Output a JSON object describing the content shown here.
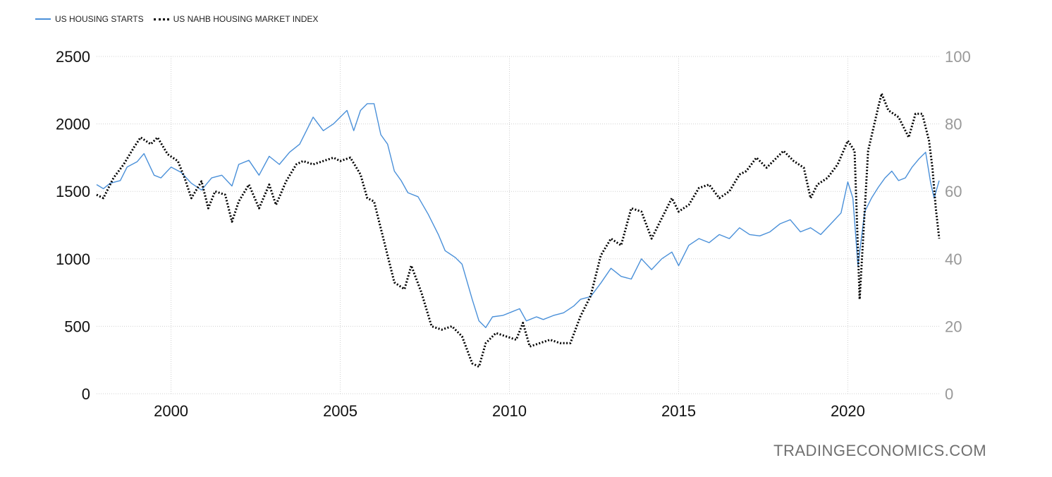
{
  "legend": {
    "series1": "US HOUSING STARTS",
    "series2": "US NAHB HOUSING MARKET INDEX"
  },
  "watermark": "TRADINGECONOMICS.COM",
  "colors": {
    "series1": "#4a90d9",
    "series2": "#000000",
    "grid": "#d0d0d0",
    "right_axis": "#999999"
  },
  "chart_data": {
    "type": "line",
    "x_ticks": [
      "2000",
      "2005",
      "2010",
      "2015",
      "2020"
    ],
    "y_left": {
      "ticks": [
        "0",
        "500",
        "1000",
        "1500",
        "2000",
        "2500"
      ],
      "range": [
        0,
        2500
      ]
    },
    "y_right": {
      "ticks": [
        "0",
        "20",
        "40",
        "60",
        "80",
        "100"
      ],
      "range": [
        0,
        100
      ]
    },
    "x_range": [
      1997.8,
      2022.7
    ],
    "grid": true,
    "legend_position": "top-left",
    "series": [
      {
        "name": "US HOUSING STARTS",
        "axis": "left",
        "style": "solid",
        "points": [
          [
            1997.8,
            1550
          ],
          [
            1998.0,
            1520
          ],
          [
            1998.2,
            1560
          ],
          [
            1998.5,
            1580
          ],
          [
            1998.7,
            1680
          ],
          [
            1999.0,
            1720
          ],
          [
            1999.2,
            1780
          ],
          [
            1999.5,
            1620
          ],
          [
            1999.7,
            1600
          ],
          [
            2000.0,
            1680
          ],
          [
            2000.3,
            1640
          ],
          [
            2000.6,
            1560
          ],
          [
            2000.9,
            1510
          ],
          [
            2001.2,
            1600
          ],
          [
            2001.5,
            1620
          ],
          [
            2001.8,
            1540
          ],
          [
            2002.0,
            1700
          ],
          [
            2002.3,
            1730
          ],
          [
            2002.6,
            1620
          ],
          [
            2002.9,
            1760
          ],
          [
            2003.2,
            1700
          ],
          [
            2003.5,
            1790
          ],
          [
            2003.8,
            1850
          ],
          [
            2004.0,
            1950
          ],
          [
            2004.2,
            2050
          ],
          [
            2004.5,
            1950
          ],
          [
            2004.8,
            2000
          ],
          [
            2005.0,
            2050
          ],
          [
            2005.2,
            2100
          ],
          [
            2005.4,
            1950
          ],
          [
            2005.6,
            2100
          ],
          [
            2005.8,
            2150
          ],
          [
            2006.0,
            2150
          ],
          [
            2006.2,
            1920
          ],
          [
            2006.4,
            1850
          ],
          [
            2006.6,
            1650
          ],
          [
            2006.8,
            1580
          ],
          [
            2007.0,
            1490
          ],
          [
            2007.3,
            1460
          ],
          [
            2007.6,
            1330
          ],
          [
            2007.9,
            1180
          ],
          [
            2008.1,
            1060
          ],
          [
            2008.4,
            1010
          ],
          [
            2008.6,
            960
          ],
          [
            2008.9,
            700
          ],
          [
            2009.1,
            540
          ],
          [
            2009.3,
            490
          ],
          [
            2009.5,
            570
          ],
          [
            2009.8,
            580
          ],
          [
            2010.0,
            600
          ],
          [
            2010.3,
            630
          ],
          [
            2010.5,
            540
          ],
          [
            2010.8,
            570
          ],
          [
            2011.0,
            550
          ],
          [
            2011.3,
            580
          ],
          [
            2011.6,
            600
          ],
          [
            2011.9,
            650
          ],
          [
            2012.1,
            700
          ],
          [
            2012.4,
            720
          ],
          [
            2012.7,
            820
          ],
          [
            2013.0,
            930
          ],
          [
            2013.3,
            870
          ],
          [
            2013.6,
            850
          ],
          [
            2013.9,
            1000
          ],
          [
            2014.2,
            920
          ],
          [
            2014.5,
            1000
          ],
          [
            2014.8,
            1050
          ],
          [
            2015.0,
            950
          ],
          [
            2015.3,
            1100
          ],
          [
            2015.6,
            1150
          ],
          [
            2015.9,
            1120
          ],
          [
            2016.2,
            1180
          ],
          [
            2016.5,
            1150
          ],
          [
            2016.8,
            1230
          ],
          [
            2017.1,
            1180
          ],
          [
            2017.4,
            1170
          ],
          [
            2017.7,
            1200
          ],
          [
            2018.0,
            1260
          ],
          [
            2018.3,
            1290
          ],
          [
            2018.6,
            1200
          ],
          [
            2018.9,
            1230
          ],
          [
            2019.2,
            1180
          ],
          [
            2019.5,
            1260
          ],
          [
            2019.8,
            1340
          ],
          [
            2020.0,
            1570
          ],
          [
            2020.15,
            1450
          ],
          [
            2020.3,
            950
          ],
          [
            2020.5,
            1350
          ],
          [
            2020.7,
            1450
          ],
          [
            2020.9,
            1530
          ],
          [
            2021.1,
            1600
          ],
          [
            2021.3,
            1650
          ],
          [
            2021.5,
            1580
          ],
          [
            2021.7,
            1600
          ],
          [
            2021.9,
            1680
          ],
          [
            2022.1,
            1740
          ],
          [
            2022.3,
            1790
          ],
          [
            2022.45,
            1560
          ],
          [
            2022.55,
            1450
          ],
          [
            2022.7,
            1580
          ]
        ]
      },
      {
        "name": "US NAHB HOUSING MARKET INDEX",
        "axis": "right",
        "style": "dotted",
        "points": [
          [
            1997.8,
            59
          ],
          [
            1998.0,
            58
          ],
          [
            1998.3,
            64
          ],
          [
            1998.6,
            68
          ],
          [
            1998.9,
            73
          ],
          [
            1999.1,
            76
          ],
          [
            1999.4,
            74
          ],
          [
            1999.6,
            76
          ],
          [
            1999.9,
            71
          ],
          [
            2000.2,
            69
          ],
          [
            2000.4,
            64
          ],
          [
            2000.6,
            58
          ],
          [
            2000.9,
            63
          ],
          [
            2001.1,
            55
          ],
          [
            2001.3,
            60
          ],
          [
            2001.6,
            59
          ],
          [
            2001.8,
            51
          ],
          [
            2002.0,
            57
          ],
          [
            2002.3,
            62
          ],
          [
            2002.6,
            55
          ],
          [
            2002.9,
            62
          ],
          [
            2003.1,
            56
          ],
          [
            2003.4,
            63
          ],
          [
            2003.7,
            68
          ],
          [
            2003.9,
            69
          ],
          [
            2004.2,
            68
          ],
          [
            2004.5,
            69
          ],
          [
            2004.8,
            70
          ],
          [
            2005.0,
            69
          ],
          [
            2005.3,
            70
          ],
          [
            2005.6,
            65
          ],
          [
            2005.8,
            58
          ],
          [
            2006.0,
            57
          ],
          [
            2006.3,
            45
          ],
          [
            2006.6,
            33
          ],
          [
            2006.9,
            31
          ],
          [
            2007.1,
            38
          ],
          [
            2007.4,
            30
          ],
          [
            2007.7,
            20
          ],
          [
            2008.0,
            19
          ],
          [
            2008.3,
            20
          ],
          [
            2008.6,
            17
          ],
          [
            2008.9,
            9
          ],
          [
            2009.1,
            8
          ],
          [
            2009.3,
            15
          ],
          [
            2009.6,
            18
          ],
          [
            2009.9,
            17
          ],
          [
            2010.2,
            16
          ],
          [
            2010.4,
            21
          ],
          [
            2010.6,
            14
          ],
          [
            2010.9,
            15
          ],
          [
            2011.2,
            16
          ],
          [
            2011.5,
            15
          ],
          [
            2011.8,
            15
          ],
          [
            2012.1,
            23
          ],
          [
            2012.4,
            29
          ],
          [
            2012.7,
            41
          ],
          [
            2013.0,
            46
          ],
          [
            2013.3,
            44
          ],
          [
            2013.6,
            55
          ],
          [
            2013.9,
            54
          ],
          [
            2014.2,
            46
          ],
          [
            2014.5,
            52
          ],
          [
            2014.8,
            58
          ],
          [
            2015.0,
            54
          ],
          [
            2015.3,
            56
          ],
          [
            2015.6,
            61
          ],
          [
            2015.9,
            62
          ],
          [
            2016.2,
            58
          ],
          [
            2016.5,
            60
          ],
          [
            2016.8,
            65
          ],
          [
            2017.0,
            66
          ],
          [
            2017.3,
            70
          ],
          [
            2017.6,
            67
          ],
          [
            2017.9,
            70
          ],
          [
            2018.1,
            72
          ],
          [
            2018.4,
            69
          ],
          [
            2018.7,
            67
          ],
          [
            2018.9,
            58
          ],
          [
            2019.1,
            62
          ],
          [
            2019.4,
            64
          ],
          [
            2019.7,
            68
          ],
          [
            2020.0,
            75
          ],
          [
            2020.2,
            72
          ],
          [
            2020.35,
            28
          ],
          [
            2020.6,
            72
          ],
          [
            2020.9,
            85
          ],
          [
            2021.0,
            89
          ],
          [
            2021.2,
            84
          ],
          [
            2021.5,
            82
          ],
          [
            2021.8,
            76
          ],
          [
            2022.0,
            83
          ],
          [
            2022.2,
            83
          ],
          [
            2022.4,
            75
          ],
          [
            2022.5,
            67
          ],
          [
            2022.6,
            55
          ],
          [
            2022.7,
            46
          ]
        ]
      }
    ]
  }
}
